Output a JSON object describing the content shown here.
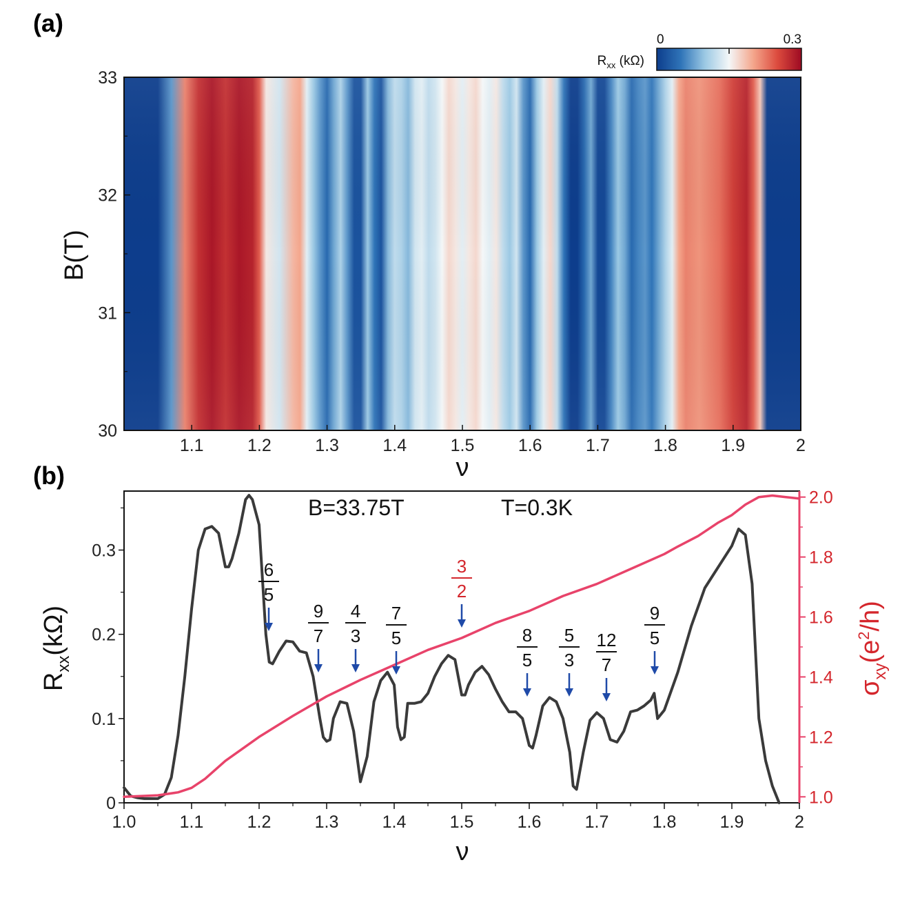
{
  "panel_a": {
    "label": "(a)"
  },
  "panel_b": {
    "label": "(b)"
  },
  "chart_data": [
    {
      "type": "heatmap",
      "xlabel": "ν",
      "ylabel": "B(T)",
      "xlim": [
        1.0,
        2.0
      ],
      "ylim": [
        30,
        33
      ],
      "x_ticks": [
        "1.1",
        "1.2",
        "1.3",
        "1.4",
        "1.5",
        "1.6",
        "1.7",
        "1.8",
        "1.9",
        "2"
      ],
      "x_tick_values": [
        1.1,
        1.2,
        1.3,
        1.4,
        1.5,
        1.6,
        1.7,
        1.8,
        1.9,
        2.0
      ],
      "y_ticks": [
        "30",
        "31",
        "32",
        "33"
      ],
      "y_tick_values": [
        30,
        31,
        32,
        33
      ],
      "colorbar": {
        "label": "R",
        "label_sub": "xx",
        "label_unit": " (kΩ)",
        "min_label": "0",
        "max_label": "0.3",
        "min": 0,
        "max": 0.3,
        "colors": [
          "#0d3d8c",
          "#2f74b8",
          "#9cc9e4",
          "#f4f7f8",
          "#f4a68c",
          "#dc4b3e",
          "#9d0a22"
        ]
      },
      "profile_nu": [
        1.0,
        1.05,
        1.07,
        1.09,
        1.11,
        1.13,
        1.15,
        1.17,
        1.19,
        1.2,
        1.21,
        1.23,
        1.25,
        1.26,
        1.27,
        1.28,
        1.29,
        1.3,
        1.31,
        1.32,
        1.33,
        1.34,
        1.35,
        1.36,
        1.37,
        1.38,
        1.39,
        1.4,
        1.41,
        1.42,
        1.43,
        1.44,
        1.45,
        1.46,
        1.47,
        1.48,
        1.49,
        1.5,
        1.51,
        1.52,
        1.53,
        1.54,
        1.55,
        1.56,
        1.57,
        1.58,
        1.59,
        1.6,
        1.61,
        1.62,
        1.63,
        1.64,
        1.65,
        1.66,
        1.67,
        1.68,
        1.69,
        1.7,
        1.71,
        1.72,
        1.73,
        1.74,
        1.75,
        1.76,
        1.77,
        1.78,
        1.79,
        1.8,
        1.81,
        1.82,
        1.83,
        1.85,
        1.88,
        1.9,
        1.92,
        1.93,
        1.94,
        1.95,
        2.0
      ],
      "profile_rxx": [
        0.0,
        0.0,
        0.07,
        0.22,
        0.27,
        0.29,
        0.27,
        0.29,
        0.28,
        0.24,
        0.16,
        0.13,
        0.19,
        0.2,
        0.14,
        0.1,
        0.07,
        0.04,
        0.08,
        0.11,
        0.07,
        0.02,
        0.02,
        0.1,
        0.05,
        0.02,
        0.09,
        0.12,
        0.11,
        0.09,
        0.13,
        0.14,
        0.12,
        0.13,
        0.15,
        0.17,
        0.16,
        0.14,
        0.16,
        0.17,
        0.15,
        0.14,
        0.16,
        0.12,
        0.1,
        0.13,
        0.07,
        0.04,
        0.1,
        0.14,
        0.17,
        0.12,
        0.05,
        0.0,
        0.0,
        0.04,
        0.08,
        0.01,
        0.01,
        0.06,
        0.1,
        0.08,
        0.04,
        0.06,
        0.07,
        0.05,
        0.08,
        0.11,
        0.14,
        0.2,
        0.22,
        0.21,
        0.23,
        0.26,
        0.28,
        0.24,
        0.18,
        0.0,
        0.0
      ]
    },
    {
      "type": "line",
      "xlabel": "ν",
      "xlim": [
        1.0,
        2.0
      ],
      "x_ticks": [
        "1.0",
        "1.1",
        "1.2",
        "1.3",
        "1.4",
        "1.5",
        "1.6",
        "1.7",
        "1.8",
        "1.9",
        "2"
      ],
      "x_tick_values": [
        1.0,
        1.1,
        1.2,
        1.3,
        1.4,
        1.5,
        1.6,
        1.7,
        1.8,
        1.9,
        2.0
      ],
      "y_left": {
        "label": "R",
        "label_sub": "xx",
        "label_unit": "(kΩ)",
        "lim": [
          0,
          0.37
        ],
        "ticks": [
          "0",
          "0.1",
          "0.2",
          "0.3"
        ],
        "tick_values": [
          0,
          0.1,
          0.2,
          0.3
        ]
      },
      "y_right": {
        "label": "σ",
        "label_sub": "xy",
        "label_unit": "(e",
        "label_sup": "2",
        "label_end": "/h)",
        "lim": [
          0.98,
          2.02
        ],
        "ticks": [
          "1.0",
          "1.2",
          "1.4",
          "1.6",
          "1.8",
          "2.0"
        ],
        "tick_values": [
          1.0,
          1.2,
          1.4,
          1.6,
          1.8,
          2.0
        ],
        "color": "#e8436a"
      },
      "annotations": {
        "field": "B=33.75T",
        "temperature": "T=0.3K"
      },
      "series": [
        {
          "axis": "left",
          "color": "#3a3a3a",
          "x": [
            1.0,
            1.01,
            1.02,
            1.03,
            1.04,
            1.05,
            1.06,
            1.07,
            1.08,
            1.09,
            1.1,
            1.11,
            1.12,
            1.13,
            1.14,
            1.15,
            1.155,
            1.16,
            1.17,
            1.18,
            1.185,
            1.19,
            1.2,
            1.21,
            1.215,
            1.22,
            1.23,
            1.24,
            1.25,
            1.26,
            1.27,
            1.28,
            1.29,
            1.295,
            1.3,
            1.305,
            1.31,
            1.32,
            1.33,
            1.34,
            1.35,
            1.36,
            1.37,
            1.38,
            1.39,
            1.4,
            1.405,
            1.41,
            1.415,
            1.42,
            1.43,
            1.44,
            1.45,
            1.46,
            1.47,
            1.48,
            1.49,
            1.5,
            1.505,
            1.51,
            1.52,
            1.53,
            1.54,
            1.55,
            1.56,
            1.57,
            1.58,
            1.59,
            1.6,
            1.605,
            1.61,
            1.62,
            1.63,
            1.64,
            1.65,
            1.66,
            1.665,
            1.67,
            1.68,
            1.69,
            1.7,
            1.71,
            1.72,
            1.73,
            1.74,
            1.75,
            1.76,
            1.77,
            1.78,
            1.785,
            1.79,
            1.8,
            1.82,
            1.84,
            1.86,
            1.88,
            1.9,
            1.91,
            1.92,
            1.93,
            1.94,
            1.95,
            1.96,
            1.97
          ],
          "y": [
            0.018,
            0.008,
            0.006,
            0.005,
            0.005,
            0.005,
            0.01,
            0.03,
            0.08,
            0.15,
            0.23,
            0.3,
            0.325,
            0.328,
            0.32,
            0.28,
            0.28,
            0.29,
            0.32,
            0.36,
            0.365,
            0.36,
            0.33,
            0.2,
            0.167,
            0.165,
            0.18,
            0.192,
            0.191,
            0.18,
            0.178,
            0.15,
            0.1,
            0.078,
            0.073,
            0.075,
            0.1,
            0.12,
            0.118,
            0.085,
            0.025,
            0.055,
            0.12,
            0.145,
            0.155,
            0.14,
            0.09,
            0.075,
            0.078,
            0.118,
            0.118,
            0.12,
            0.13,
            0.15,
            0.165,
            0.175,
            0.17,
            0.128,
            0.128,
            0.14,
            0.155,
            0.162,
            0.152,
            0.135,
            0.12,
            0.108,
            0.108,
            0.1,
            0.068,
            0.065,
            0.08,
            0.115,
            0.125,
            0.12,
            0.1,
            0.06,
            0.02,
            0.016,
            0.06,
            0.098,
            0.107,
            0.1,
            0.075,
            0.072,
            0.085,
            0.108,
            0.11,
            0.115,
            0.122,
            0.13,
            0.1,
            0.11,
            0.155,
            0.21,
            0.255,
            0.28,
            0.305,
            0.325,
            0.318,
            0.26,
            0.1,
            0.05,
            0.02,
            0.0
          ]
        },
        {
          "axis": "right",
          "color": "#e8436a",
          "x": [
            1.0,
            1.05,
            1.08,
            1.1,
            1.12,
            1.15,
            1.2,
            1.25,
            1.3,
            1.35,
            1.4,
            1.45,
            1.5,
            1.55,
            1.6,
            1.65,
            1.7,
            1.75,
            1.8,
            1.82,
            1.85,
            1.88,
            1.9,
            1.92,
            1.94,
            1.96,
            1.98,
            2.0
          ],
          "y": [
            1.0,
            1.005,
            1.015,
            1.03,
            1.06,
            1.12,
            1.2,
            1.27,
            1.335,
            1.39,
            1.44,
            1.49,
            1.53,
            1.58,
            1.62,
            1.67,
            1.71,
            1.76,
            1.81,
            1.835,
            1.87,
            1.915,
            1.94,
            1.975,
            2.0,
            2.005,
            2.0,
            1.995
          ]
        }
      ],
      "fractions": [
        {
          "num": "6",
          "den": "5",
          "nu": 1.22,
          "color": "black"
        },
        {
          "num": "9",
          "den": "7",
          "nu": 1.29,
          "color": "black"
        },
        {
          "num": "4",
          "den": "3",
          "nu": 1.35,
          "color": "black"
        },
        {
          "num": "7",
          "den": "5",
          "nu": 1.41,
          "color": "black"
        },
        {
          "num": "3",
          "den": "2",
          "nu": 1.5,
          "color": "red"
        },
        {
          "num": "8",
          "den": "5",
          "nu": 1.6,
          "color": "black"
        },
        {
          "num": "5",
          "den": "3",
          "nu": 1.665,
          "color": "black"
        },
        {
          "num": "12",
          "den": "7",
          "nu": 1.715,
          "color": "black"
        },
        {
          "num": "9",
          "den": "5",
          "nu": 1.79,
          "color": "black"
        }
      ]
    }
  ]
}
